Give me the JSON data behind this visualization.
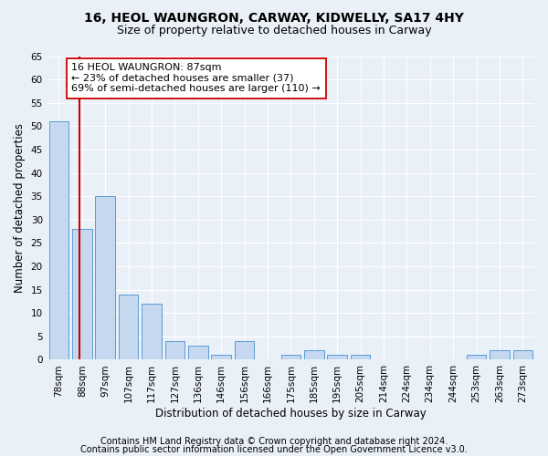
{
  "title1": "16, HEOL WAUNGRON, CARWAY, KIDWELLY, SA17 4HY",
  "title2": "Size of property relative to detached houses in Carway",
  "xlabel": "Distribution of detached houses by size in Carway",
  "ylabel": "Number of detached properties",
  "categories": [
    "78sqm",
    "88sqm",
    "97sqm",
    "107sqm",
    "117sqm",
    "127sqm",
    "136sqm",
    "146sqm",
    "156sqm",
    "166sqm",
    "175sqm",
    "185sqm",
    "195sqm",
    "205sqm",
    "214sqm",
    "224sqm",
    "234sqm",
    "244sqm",
    "253sqm",
    "263sqm",
    "273sqm"
  ],
  "values": [
    51,
    28,
    35,
    14,
    12,
    4,
    3,
    1,
    4,
    0,
    1,
    2,
    1,
    1,
    0,
    0,
    0,
    0,
    1,
    2,
    2
  ],
  "bar_color": "#c5d8f0",
  "bar_edge_color": "#5b9bd5",
  "subject_line_color": "#cc0000",
  "subject_line_xindex": 0.89,
  "annotation_line1": "16 HEOL WAUNGRON: 87sqm",
  "annotation_line2": "← 23% of detached houses are smaller (37)",
  "annotation_line3": "69% of semi-detached houses are larger (110) →",
  "annotation_box_color": "#ffffff",
  "annotation_box_edge": "#cc0000",
  "ylim": [
    0,
    65
  ],
  "yticks": [
    0,
    5,
    10,
    15,
    20,
    25,
    30,
    35,
    40,
    45,
    50,
    55,
    60,
    65
  ],
  "footer1": "Contains HM Land Registry data © Crown copyright and database right 2024.",
  "footer2": "Contains public sector information licensed under the Open Government Licence v3.0.",
  "background_color": "#eaf0f8",
  "grid_color": "#ffffff",
  "title1_fontsize": 10,
  "title2_fontsize": 9,
  "axis_label_fontsize": 8.5,
  "tick_fontsize": 7.5,
  "annotation_fontsize": 8,
  "footer_fontsize": 7
}
